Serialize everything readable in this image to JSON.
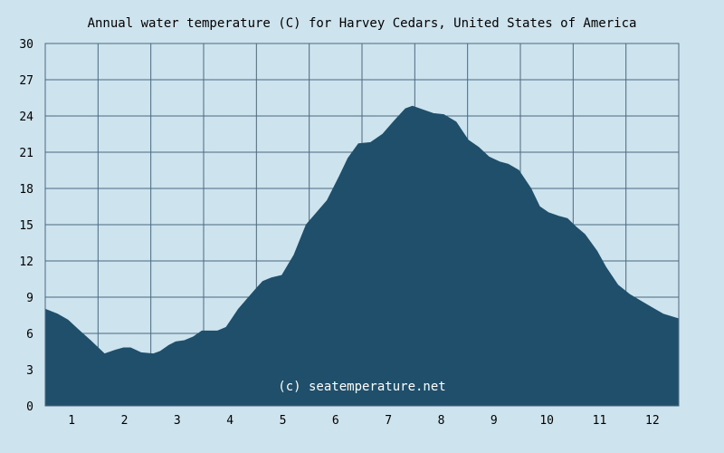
{
  "chart_data": {
    "type": "area",
    "title": "Annual water temperature (C) for Harvey Cedars, United States of America",
    "watermark": "(c) seatemperature.net",
    "xlabel": "",
    "ylabel": "",
    "x_ticks": [
      "1",
      "2",
      "3",
      "4",
      "5",
      "6",
      "7",
      "8",
      "9",
      "10",
      "11",
      "12"
    ],
    "y_ticks": [
      "0",
      "3",
      "6",
      "9",
      "12",
      "15",
      "18",
      "21",
      "24",
      "27",
      "30"
    ],
    "ylim": [
      0,
      30
    ],
    "xlim": [
      1,
      365
    ],
    "grid": true,
    "colors": {
      "background": "#cde3ee",
      "fill": "#1f4f6b",
      "grid": "#4a6a80",
      "text": "#000000"
    },
    "series": [
      {
        "x": [
          1,
          8,
          14,
          20,
          27,
          35,
          41,
          46,
          50,
          56,
          63,
          67,
          72,
          76,
          81,
          86,
          91,
          100,
          105,
          112,
          121,
          126,
          131,
          137,
          144,
          151,
          157,
          163,
          170,
          175,
          181,
          188,
          195,
          201,
          208,
          212,
          218,
          224,
          230,
          237,
          244,
          250,
          256,
          262,
          267,
          273,
          280,
          285,
          290,
          296,
          301,
          306,
          311,
          318,
          323,
          330,
          337,
          344,
          350,
          356,
          365
        ],
        "values": [
          8.0,
          7.6,
          7.1,
          6.3,
          5.4,
          4.3,
          4.6,
          4.8,
          4.8,
          4.4,
          4.3,
          4.5,
          5.0,
          5.3,
          5.4,
          5.7,
          6.2,
          6.2,
          6.5,
          8.0,
          9.5,
          10.3,
          10.6,
          10.8,
          12.5,
          15.0,
          16.0,
          17.0,
          19.0,
          20.5,
          21.7,
          21.8,
          22.5,
          23.5,
          24.6,
          24.8,
          24.5,
          24.2,
          24.1,
          23.5,
          22.0,
          21.4,
          20.6,
          20.2,
          20.0,
          19.5,
          18.0,
          16.5,
          16.0,
          15.7,
          15.5,
          14.8,
          14.2,
          12.8,
          11.5,
          10.0,
          9.2,
          8.6,
          8.1,
          7.6,
          7.2
        ]
      }
    ]
  }
}
